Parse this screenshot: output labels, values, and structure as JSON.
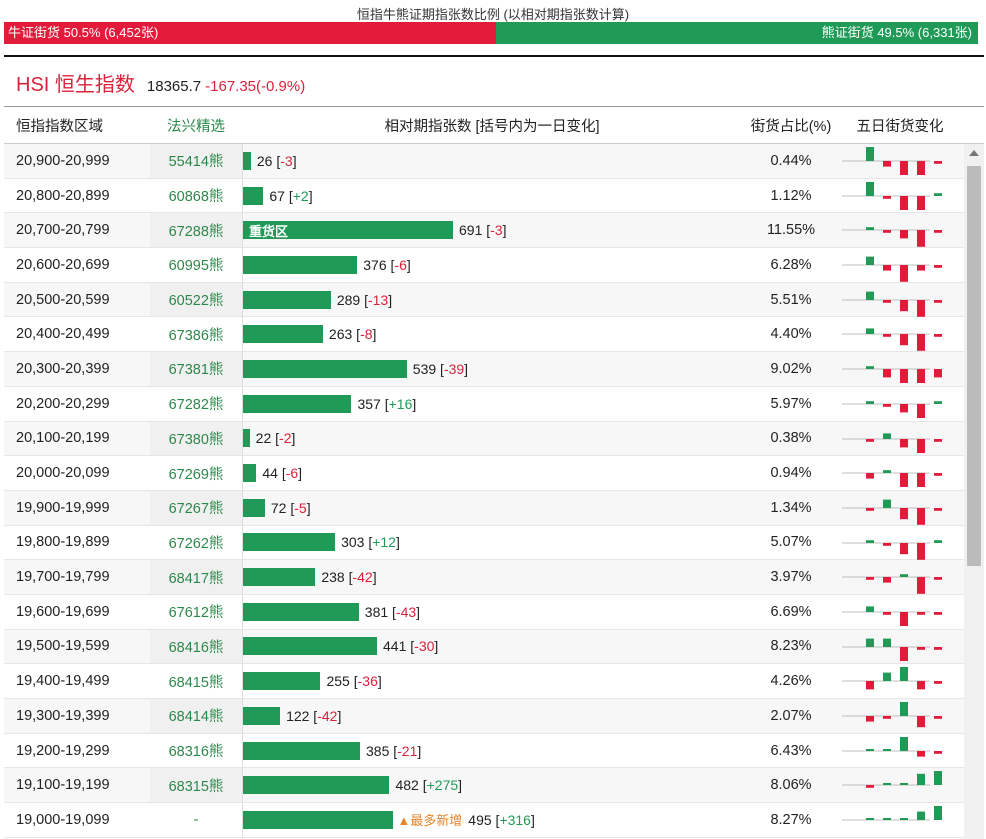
{
  "ratio": {
    "title": "恒指牛熊证期指张数比例 (以相对期指张数计算)",
    "bull_label": "牛证街货 50.5% (6,452张)",
    "bear_label": "熊证街货 49.5% (6,331张)",
    "bull_fraction": 0.505,
    "bull_color": "#e31b3b",
    "bear_color": "#1f9b57"
  },
  "hsi": {
    "name": "HSI 恒生指数",
    "price": "18365.7",
    "change": "-167.35(-0.9%)"
  },
  "headers": {
    "range": "恒指指数区域",
    "code": "法兴精选",
    "bar": "相对期指张数 [括号内为一日变化]",
    "pct": "街货占比(%)",
    "five": "五日街货变化"
  },
  "max_value": 691,
  "rows": [
    {
      "range": "20,900-20,999",
      "code": "55414熊",
      "value": 26,
      "num": "26",
      "chg": "-3",
      "pct": "0.44%",
      "five": [
        0.5,
        -0.2,
        -0.5,
        -0.5,
        -0.1
      ]
    },
    {
      "range": "20,800-20,899",
      "code": "60868熊",
      "value": 67,
      "num": "67",
      "chg": "+2",
      "pct": "1.12%",
      "five": [
        0.5,
        -0.1,
        -0.5,
        -0.5,
        0.1
      ]
    },
    {
      "range": "20,700-20,799",
      "code": "67288熊",
      "value": 691,
      "num": "691",
      "chg": "-3",
      "pct": "11.55%",
      "tag": "重货区",
      "five": [
        0.1,
        -0.1,
        -0.3,
        -0.6,
        -0.1
      ]
    },
    {
      "range": "20,600-20,699",
      "code": "60995熊",
      "value": 376,
      "num": "376",
      "chg": "-6",
      "pct": "6.28%",
      "five": [
        0.3,
        -0.2,
        -0.6,
        -0.2,
        -0.1
      ]
    },
    {
      "range": "20,500-20,599",
      "code": "60522熊",
      "value": 289,
      "num": "289",
      "chg": "-13",
      "pct": "5.51%",
      "five": [
        0.3,
        -0.1,
        -0.4,
        -0.6,
        -0.1
      ]
    },
    {
      "range": "20,400-20,499",
      "code": "67386熊",
      "value": 263,
      "num": "263",
      "chg": "-8",
      "pct": "4.40%",
      "five": [
        0.2,
        -0.1,
        -0.4,
        -0.6,
        -0.1
      ]
    },
    {
      "range": "20,300-20,399",
      "code": "67381熊",
      "value": 539,
      "num": "539",
      "chg": "-39",
      "pct": "9.02%",
      "five": [
        0.1,
        -0.3,
        -0.5,
        -0.5,
        -0.3
      ]
    },
    {
      "range": "20,200-20,299",
      "code": "67282熊",
      "value": 357,
      "num": "357",
      "chg": "+16",
      "pct": "5.97%",
      "five": [
        0.1,
        -0.1,
        -0.3,
        -0.5,
        0.1
      ]
    },
    {
      "range": "20,100-20,199",
      "code": "67380熊",
      "value": 22,
      "num": "22",
      "chg": "-2",
      "pct": "0.38%",
      "five": [
        -0.1,
        0.2,
        -0.3,
        -0.5,
        -0.1
      ]
    },
    {
      "range": "20,000-20,099",
      "code": "67269熊",
      "value": 44,
      "num": "44",
      "chg": "-6",
      "pct": "0.94%",
      "five": [
        -0.2,
        0.1,
        -0.5,
        -0.5,
        -0.1
      ]
    },
    {
      "range": "19,900-19,999",
      "code": "67267熊",
      "value": 72,
      "num": "72",
      "chg": "-5",
      "pct": "1.34%",
      "five": [
        -0.1,
        0.3,
        -0.4,
        -0.6,
        -0.1
      ]
    },
    {
      "range": "19,800-19,899",
      "code": "67262熊",
      "value": 303,
      "num": "303",
      "chg": "+12",
      "pct": "5.07%",
      "five": [
        0.1,
        -0.1,
        -0.4,
        -0.6,
        0.1
      ]
    },
    {
      "range": "19,700-19,799",
      "code": "68417熊",
      "value": 238,
      "num": "238",
      "chg": "-42",
      "pct": "3.97%",
      "five": [
        -0.1,
        -0.2,
        0.1,
        -0.6,
        -0.1
      ]
    },
    {
      "range": "19,600-19,699",
      "code": "67612熊",
      "value": 381,
      "num": "381",
      "chg": "-43",
      "pct": "6.69%",
      "five": [
        0.2,
        -0.1,
        -0.5,
        -0.1,
        -0.1
      ]
    },
    {
      "range": "19,500-19,599",
      "code": "68416熊",
      "value": 441,
      "num": "441",
      "chg": "-30",
      "pct": "8.23%",
      "five": [
        0.3,
        0.3,
        -0.5,
        -0.1,
        -0.1
      ]
    },
    {
      "range": "19,400-19,499",
      "code": "68415熊",
      "value": 255,
      "num": "255",
      "chg": "-36",
      "pct": "4.26%",
      "five": [
        -0.3,
        0.3,
        0.5,
        -0.3,
        -0.1
      ]
    },
    {
      "range": "19,300-19,399",
      "code": "68414熊",
      "value": 122,
      "num": "122",
      "chg": "-42",
      "pct": "2.07%",
      "five": [
        -0.2,
        -0.1,
        0.5,
        -0.4,
        -0.1
      ]
    },
    {
      "range": "19,200-19,299",
      "code": "68316熊",
      "value": 385,
      "num": "385",
      "chg": "-21",
      "pct": "6.43%",
      "five": [
        0.0,
        0.0,
        0.5,
        -0.2,
        -0.1
      ]
    },
    {
      "range": "19,100-19,199",
      "code": "68315熊",
      "value": 482,
      "num": "482",
      "chg": "+275",
      "pct": "8.06%",
      "five": [
        -0.1,
        0.0,
        0.0,
        0.4,
        0.5
      ]
    },
    {
      "range": "19,000-19,099",
      "code": "-",
      "value": 495,
      "num": "495",
      "chg": "+316",
      "pct": "8.27%",
      "new": "最多新增",
      "five": [
        0.0,
        0.0,
        0.0,
        0.3,
        0.5
      ]
    }
  ]
}
